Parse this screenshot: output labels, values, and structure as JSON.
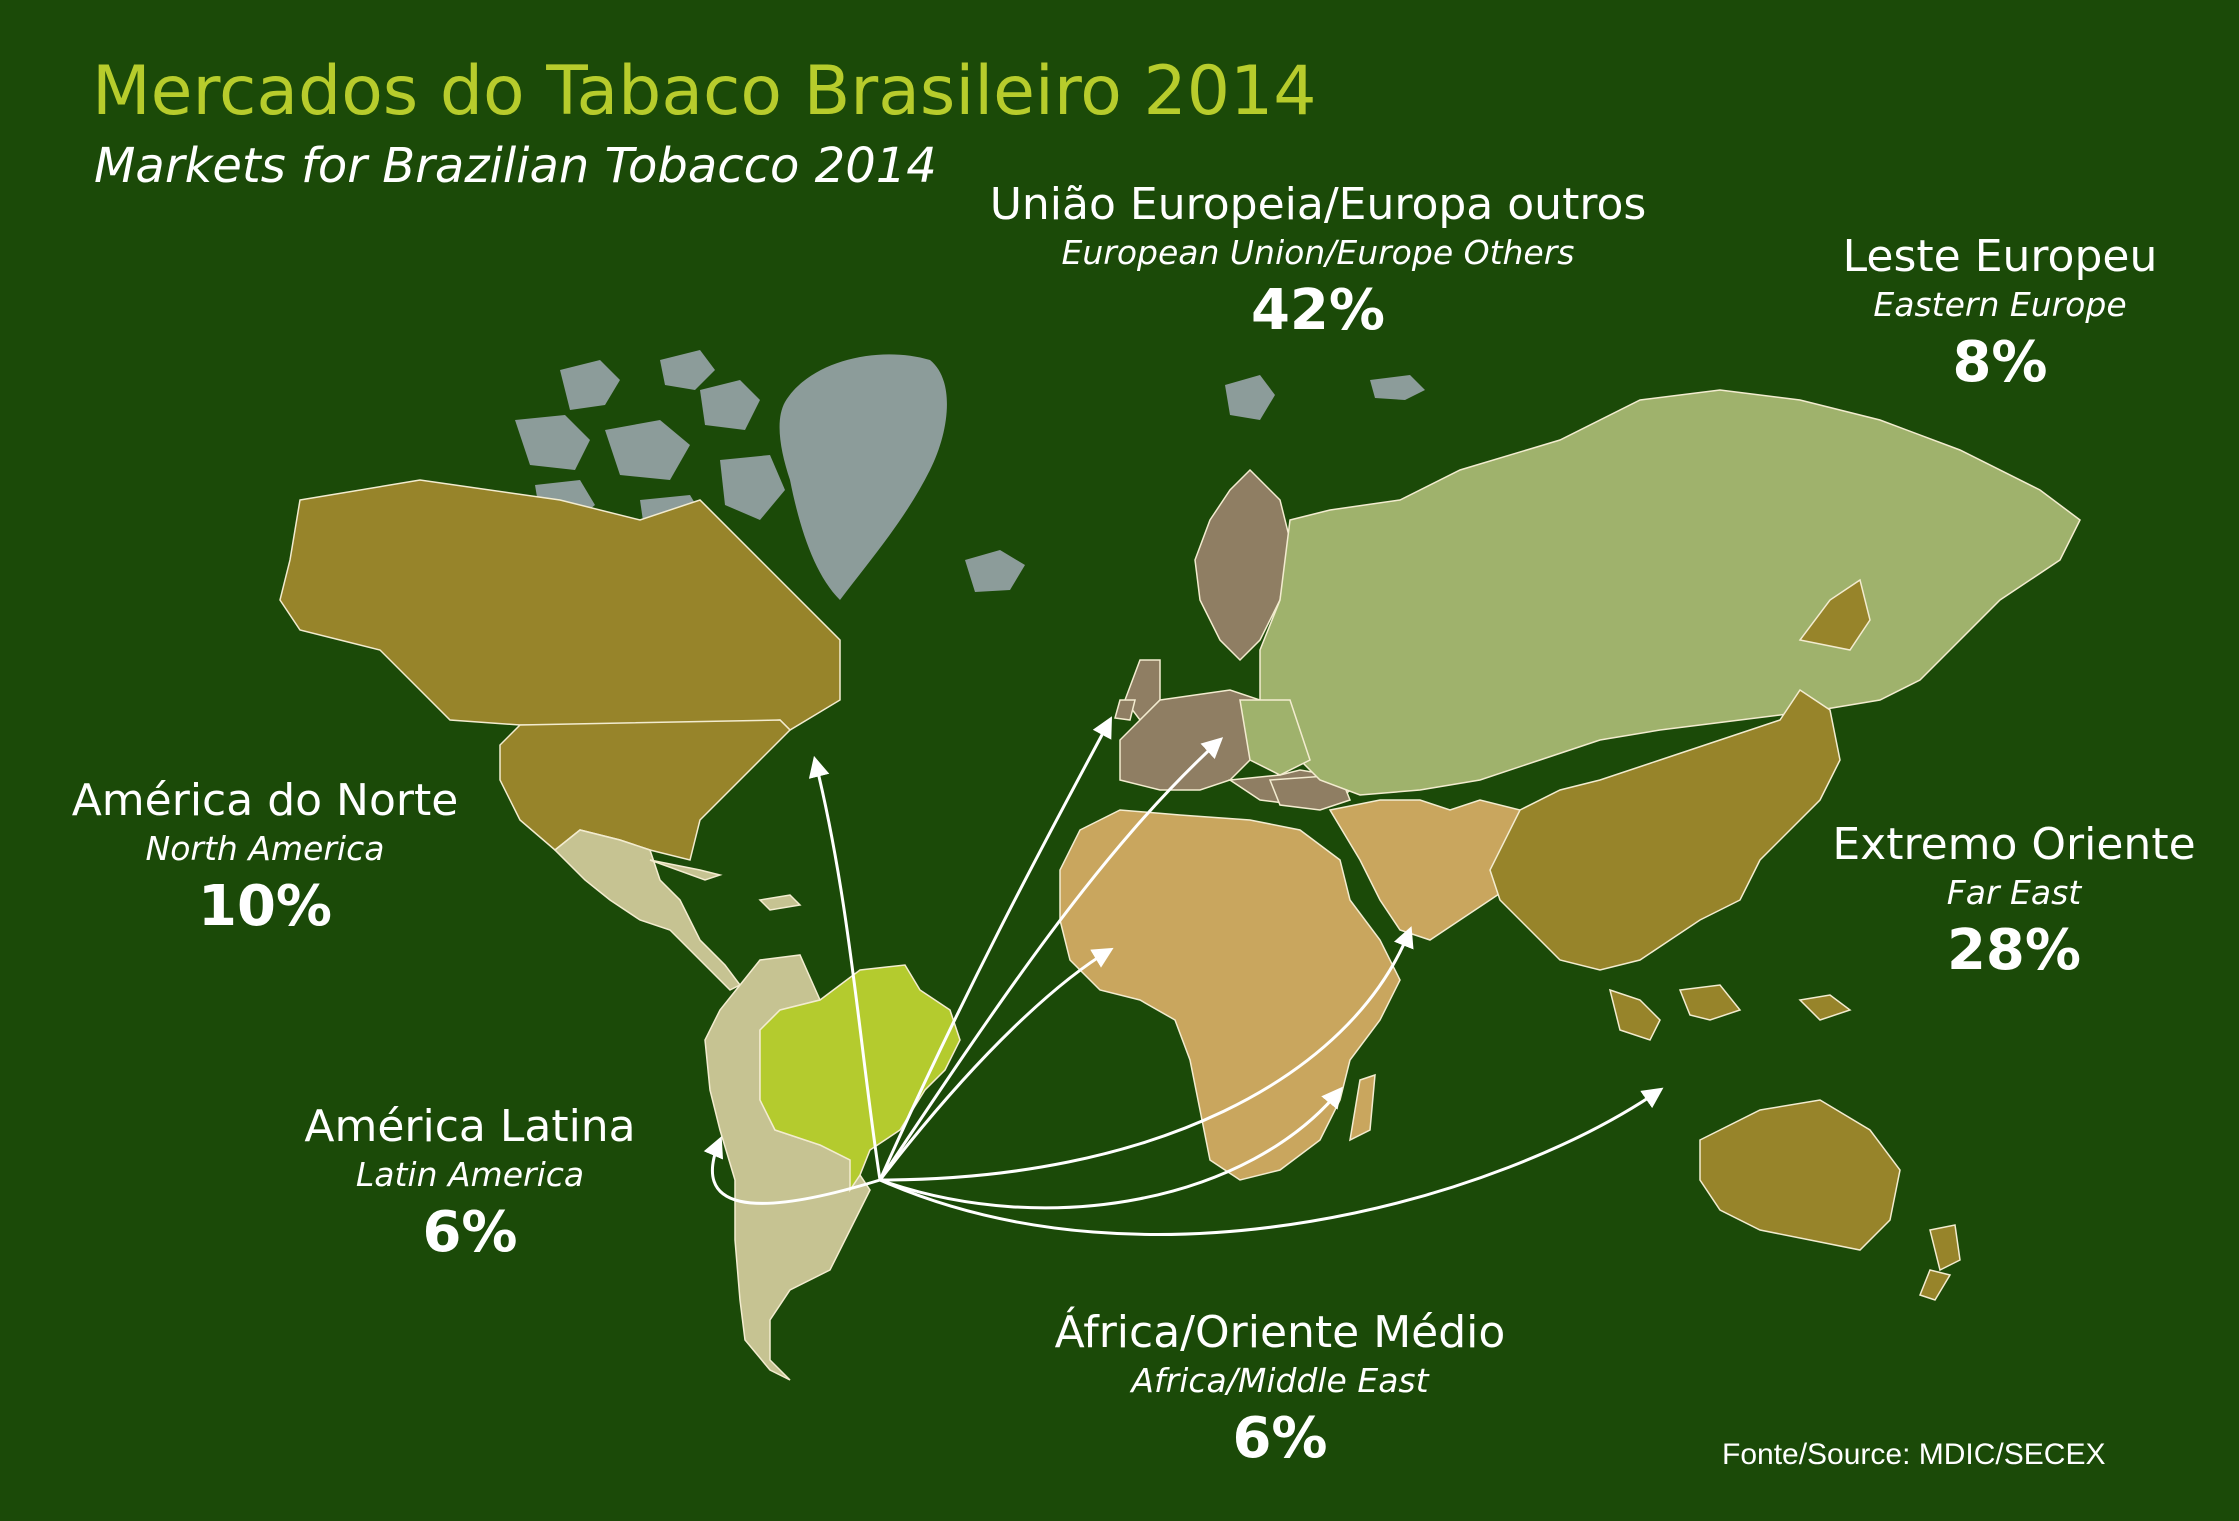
{
  "title": "Mercados do Tabaco Brasileiro 2014",
  "subtitle": "Markets for Brazilian Tobacco 2014",
  "source": "Fonte/Source: MDIC/SECEX",
  "colors": {
    "background": "#1b4a08",
    "title": "#b7cc2c",
    "north_america": "#97842a",
    "latin_america": "#c6c392",
    "brazil": "#b4cb2e",
    "europe": "#8f7e63",
    "eastern_europe": "#9fb26c",
    "africa_middle_east": "#c9a65e",
    "far_east": "#97842a",
    "no_data": "#8c9c9a"
  },
  "regions": [
    {
      "key": "europe",
      "name_pt": "União Europeia/Europa outros",
      "name_en": "European Union/Europe Others",
      "percent": "42%"
    },
    {
      "key": "eastern_europe",
      "name_pt": "Leste Europeu",
      "name_en": "Eastern Europe",
      "percent": "8%"
    },
    {
      "key": "north_america",
      "name_pt": "América do Norte",
      "name_en": "North America",
      "percent": "10%"
    },
    {
      "key": "far_east",
      "name_pt": "Extremo Oriente",
      "name_en": "Far East",
      "percent": "28%"
    },
    {
      "key": "latin_america",
      "name_pt": "América Latina",
      "name_en": "Latin America",
      "percent": "6%"
    },
    {
      "key": "africa_middle_east",
      "name_pt": "África/Oriente Médio",
      "name_en": "Africa/Middle East",
      "percent": "6%"
    }
  ]
}
